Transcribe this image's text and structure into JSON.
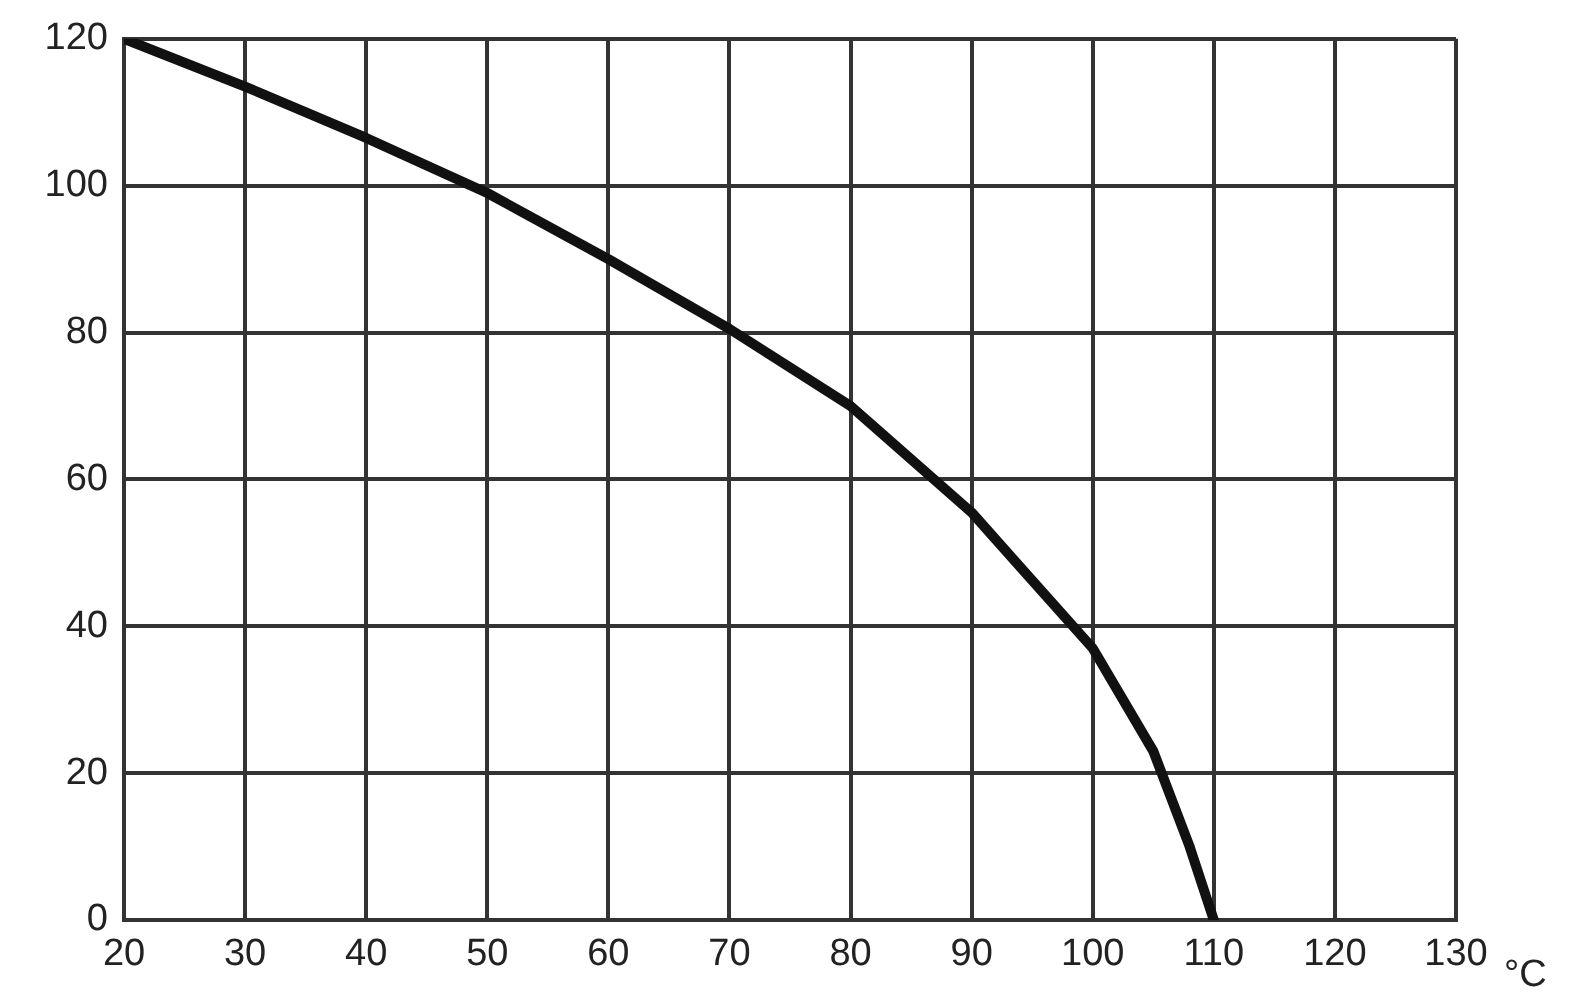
{
  "chart_data": {
    "type": "line",
    "xlabel": "°C",
    "x": [
      20,
      30,
      40,
      50,
      60,
      70,
      80,
      90,
      100,
      105,
      108,
      110
    ],
    "series": [
      {
        "color": "#111111",
        "values": [
          120,
          113.5,
          106.5,
          99,
          90,
          80.5,
          70,
          55.5,
          37,
          23,
          10,
          0
        ]
      }
    ],
    "xlim": [
      20,
      130
    ],
    "xticks": [
      20,
      30,
      40,
      50,
      60,
      70,
      80,
      90,
      100,
      110,
      120,
      130
    ],
    "ylim": [
      0,
      120
    ],
    "yticks": [
      0,
      20,
      40,
      60,
      80,
      100,
      120
    ],
    "grid": true,
    "legend": false,
    "marker": "none",
    "line_style": "solid"
  }
}
